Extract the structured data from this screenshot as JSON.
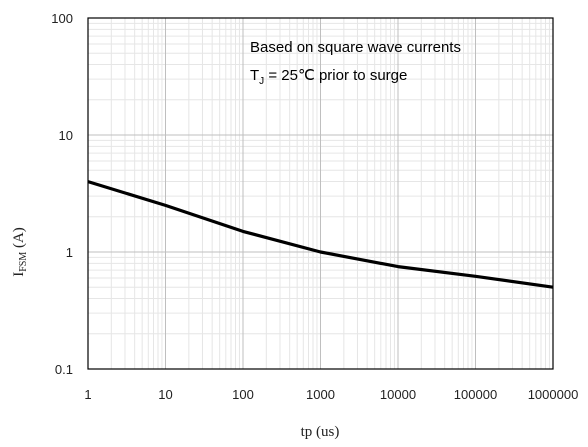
{
  "chart_data": {
    "type": "line",
    "xscale": "log",
    "yscale": "log",
    "xlim": [
      1,
      1000000
    ],
    "ylim": [
      0.1,
      100
    ],
    "xticks": [
      "1",
      "10",
      "100",
      "1000",
      "10000",
      "100000",
      "1000000"
    ],
    "yticks": [
      "100",
      "10",
      "1",
      "0.1"
    ],
    "xlabel": "tp (us)",
    "ylabel": {
      "main": "I",
      "sub": "FSM",
      "unit": " (A)"
    },
    "annotation": {
      "line1": "Based on square wave currents",
      "line2": {
        "prefix": "T",
        "sub": "J",
        "rest": " = 25℃ prior to surge"
      }
    },
    "grid": true,
    "legend": "none",
    "colors": {
      "line": "#000000",
      "major_grid": "#bfbfbf",
      "minor_grid": "#e6e6e6",
      "frame": "#000000"
    },
    "series": [
      {
        "x": [
          1,
          10,
          100,
          1000,
          10000,
          100000,
          1000000
        ],
        "y": [
          4.0,
          2.5,
          1.5,
          1.0,
          0.75,
          0.62,
          0.5
        ]
      }
    ]
  }
}
